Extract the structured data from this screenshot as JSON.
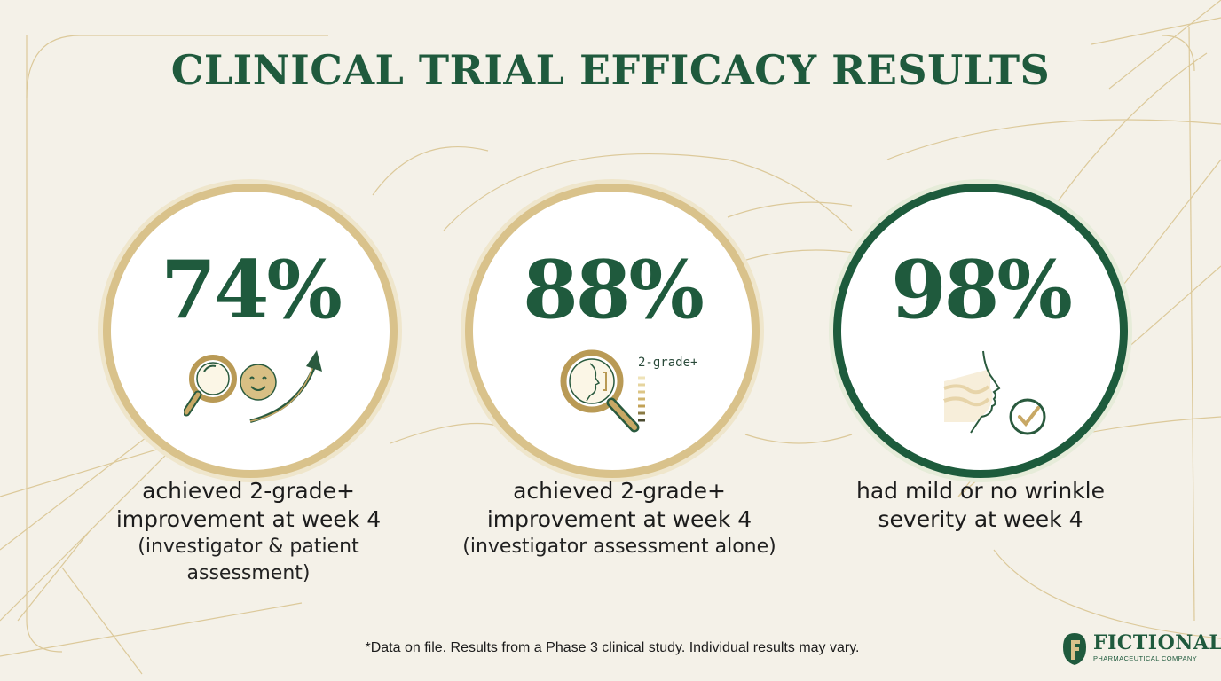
{
  "title": "CLINICAL TRIAL EFFICACY RESULTS",
  "stats": [
    {
      "value": "74%",
      "caption_lines": [
        "achieved 2-grade+",
        "improvement at week 4"
      ],
      "sub_lines": [
        "(investigator & patient",
        "assessment)"
      ],
      "icons": [
        "magnifier-icon",
        "smiley-face-icon",
        "rising-arrow-icon"
      ],
      "ring_color": "#d9c28b"
    },
    {
      "value": "88%",
      "caption_lines": [
        "achieved 2-grade+",
        "improvement at week 4"
      ],
      "sub_lines": [
        "(investigator assessment alone)"
      ],
      "grade_label": "2-grade+",
      "icons": [
        "magnifier-face-icon",
        "grade-scale-icon"
      ],
      "ring_color": "#d9c28b"
    },
    {
      "value": "98%",
      "caption_lines": [
        "had mild or no wrinkle",
        "severity at week 4"
      ],
      "icons": [
        "face-profile-icon",
        "check-circle-icon"
      ],
      "ring_color": "#1d5b3c"
    }
  ],
  "footnote": "*Data on file. Results from a Phase 3 clinical study. Individual results may vary.",
  "logo": {
    "name": "FICTIONAL",
    "tagline": "PHARMACEUTICAL COMPANY"
  },
  "colors": {
    "primary_green": "#1f5a3d",
    "gold": "#d9c28b",
    "background": "#f4f1e8"
  }
}
